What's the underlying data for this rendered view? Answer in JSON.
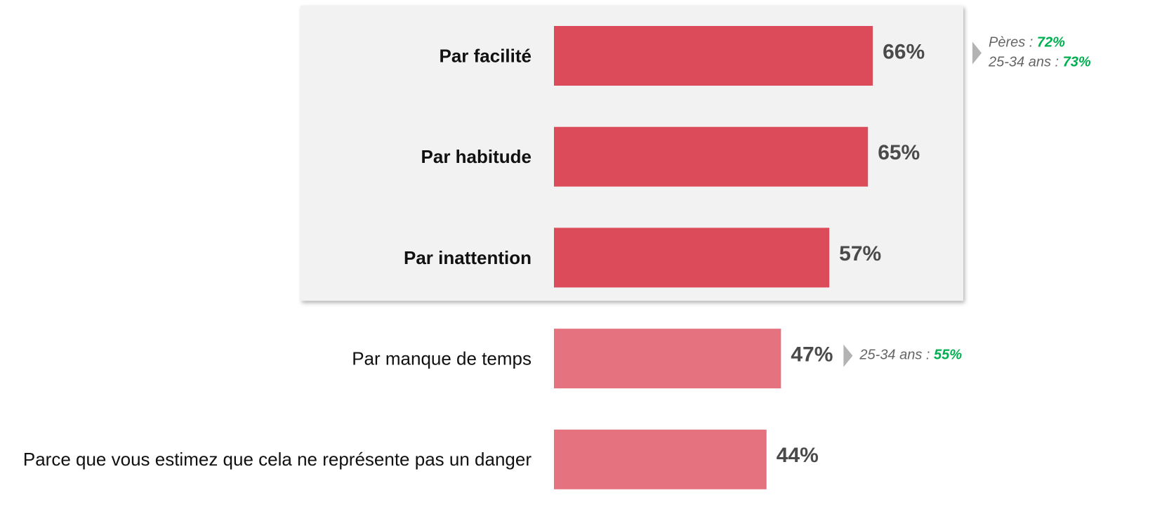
{
  "chart_data": {
    "type": "bar",
    "orientation": "horizontal",
    "categories": [
      "Par facilité",
      "Par habitude",
      "Par inattention",
      "Par manque de temps",
      "Parce que vous estimez que cela ne représente pas un danger"
    ],
    "values": [
      66,
      65,
      57,
      47,
      44
    ],
    "value_labels": [
      "66%",
      "65%",
      "57%",
      "47%",
      "44%"
    ],
    "colors": [
      "#dc4b5a",
      "#dc4b5a",
      "#dc4b5a",
      "#e5737f",
      "#e5737f"
    ],
    "highlight": [
      true,
      true,
      true,
      false,
      false
    ],
    "annotations": [
      [
        {
          "label": "Pères :",
          "value_label": "72%"
        },
        {
          "label": "25-34 ans :",
          "value_label": "73%"
        }
      ],
      null,
      null,
      [
        {
          "label": "25-34 ans :",
          "value_label": "55%"
        }
      ],
      null
    ]
  }
}
